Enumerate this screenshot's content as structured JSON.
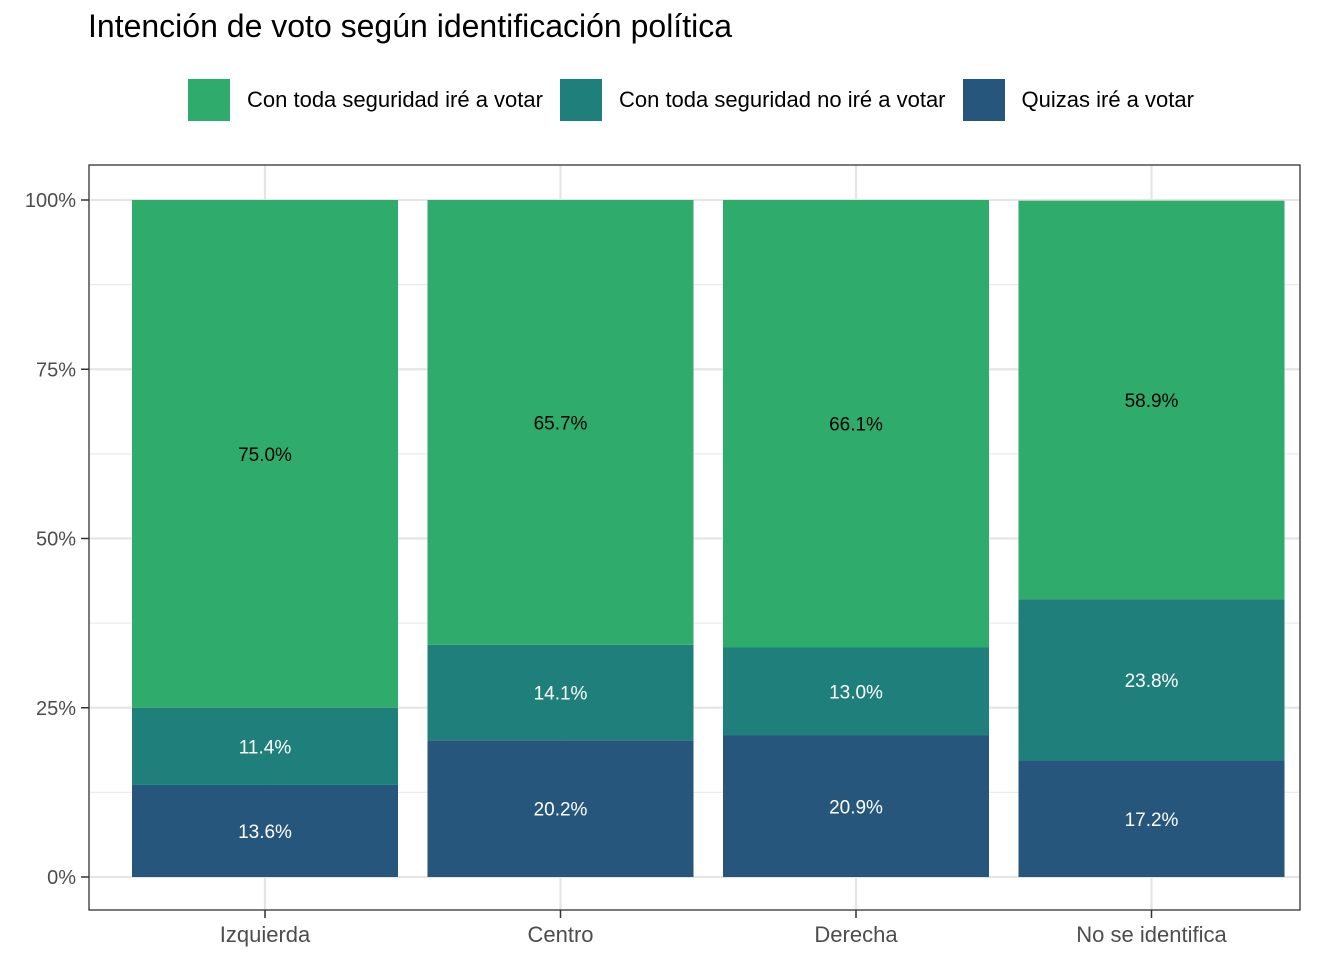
{
  "chart_data": {
    "type": "bar",
    "stacked": true,
    "title": "Intención de voto según identificación política",
    "xlabel": "",
    "ylabel": "",
    "ylim": [
      0,
      100
    ],
    "y_ticks": [
      "0%",
      "25%",
      "50%",
      "75%",
      "100%"
    ],
    "y_tick_values": [
      0,
      25,
      50,
      75,
      100
    ],
    "categories": [
      "Izquierda",
      "Centro",
      "Derecha",
      "No se identifica"
    ],
    "series": [
      {
        "name": "Quizas iré a votar",
        "color": "#26567c",
        "values": [
          13.6,
          20.2,
          20.9,
          17.2
        ],
        "labels": [
          "13.6%",
          "20.2%",
          "20.9%",
          "17.2%"
        ]
      },
      {
        "name": "Con toda seguridad no iré a votar",
        "color": "#1f7f7a",
        "values": [
          11.4,
          14.1,
          13.0,
          23.8
        ],
        "labels": [
          "11.4%",
          "14.1%",
          "13.0%",
          "23.8%"
        ]
      },
      {
        "name": "Con toda seguridad iré a votar",
        "color": "#2fac6b",
        "values": [
          75.0,
          65.7,
          66.1,
          58.9
        ],
        "labels": [
          "75.0%",
          "65.7%",
          "66.1%",
          "58.9%"
        ]
      }
    ],
    "legend": {
      "position": "top",
      "items": [
        {
          "label": "Con toda seguridad iré a votar",
          "color": "#2fac6b"
        },
        {
          "label": "Con toda seguridad no iré a votar",
          "color": "#1f7f7a"
        },
        {
          "label": "Quizas iré a votar",
          "color": "#26567c"
        }
      ]
    },
    "grid": true,
    "theme": "bw"
  }
}
